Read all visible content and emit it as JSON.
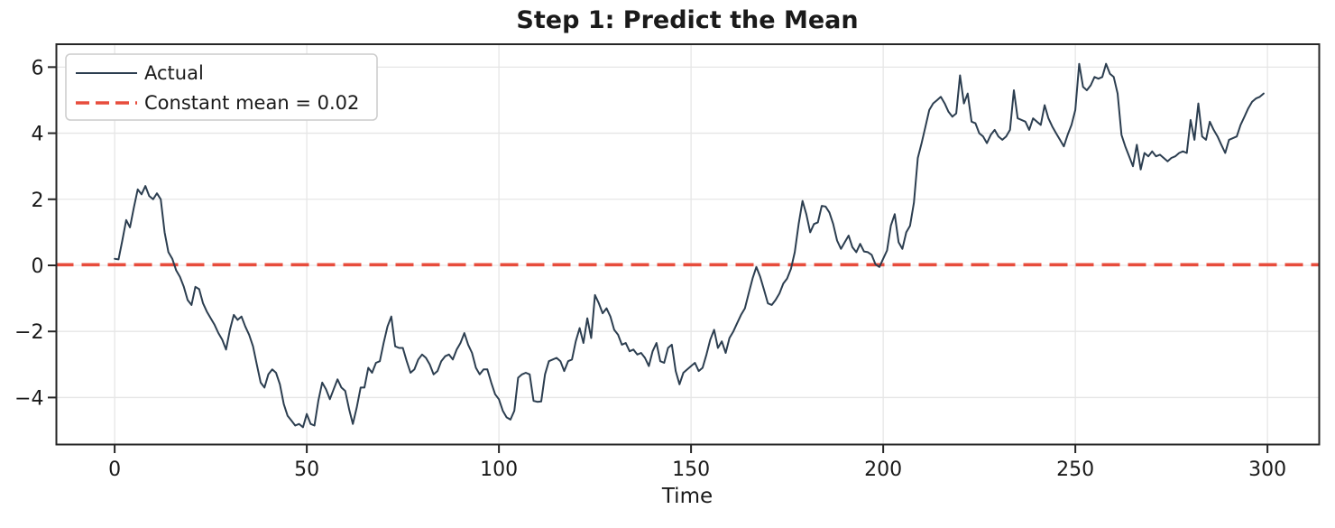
{
  "page": {
    "background": "#ffffff"
  },
  "chart_data": {
    "type": "line",
    "title": "Step 1: Predict the Mean",
    "xlabel": "Time",
    "ylabel": "",
    "x_start": 0,
    "x_step": 1,
    "n_points": 300,
    "xlim": [
      -15.4,
      313.7
    ],
    "ylim": [
      -5.45,
      6.72
    ],
    "xticks": [
      0,
      50,
      100,
      150,
      200,
      250,
      300
    ],
    "xtick_labels": [
      "0",
      "50",
      "100",
      "150",
      "200",
      "250",
      "300"
    ],
    "yticks": [
      6,
      4,
      2,
      0,
      -2,
      -4
    ],
    "ytick_labels": [
      "6",
      "4",
      "2",
      "0",
      "−2",
      "−4"
    ],
    "grid": true,
    "legend_position": "upper left",
    "constant_mean": 0.02,
    "series": [
      {
        "name": "Actual",
        "color": "#2c3e50",
        "style": "solid",
        "line_width": 2,
        "values": [
          0.2,
          0.18,
          0.75,
          1.37,
          1.15,
          1.75,
          2.3,
          2.15,
          2.4,
          2.1,
          2.0,
          2.18,
          2.0,
          1.0,
          0.4,
          0.2,
          -0.15,
          -0.35,
          -0.65,
          -1.05,
          -1.2,
          -0.65,
          -0.72,
          -1.15,
          -1.4,
          -1.6,
          -1.8,
          -2.05,
          -2.25,
          -2.55,
          -1.95,
          -1.5,
          -1.65,
          -1.55,
          -1.85,
          -2.1,
          -2.45,
          -3.0,
          -3.55,
          -3.7,
          -3.3,
          -3.15,
          -3.25,
          -3.6,
          -4.2,
          -4.55,
          -4.7,
          -4.85,
          -4.8,
          -4.9,
          -4.5,
          -4.8,
          -4.85,
          -4.1,
          -3.55,
          -3.75,
          -4.05,
          -3.75,
          -3.45,
          -3.7,
          -3.8,
          -4.35,
          -4.8,
          -4.3,
          -3.7,
          -3.7,
          -3.1,
          -3.25,
          -2.95,
          -2.9,
          -2.35,
          -1.85,
          -1.55,
          -2.45,
          -2.5,
          -2.5,
          -2.9,
          -3.25,
          -3.15,
          -2.85,
          -2.7,
          -2.8,
          -3.0,
          -3.3,
          -3.2,
          -2.9,
          -2.75,
          -2.7,
          -2.85,
          -2.55,
          -2.35,
          -2.05,
          -2.4,
          -2.65,
          -3.1,
          -3.3,
          -3.15,
          -3.15,
          -3.55,
          -3.9,
          -4.05,
          -4.4,
          -4.6,
          -4.67,
          -4.4,
          -3.4,
          -3.3,
          -3.25,
          -3.3,
          -4.1,
          -4.13,
          -4.12,
          -3.3,
          -2.9,
          -2.85,
          -2.8,
          -2.9,
          -3.2,
          -2.9,
          -2.85,
          -2.3,
          -1.9,
          -2.35,
          -1.6,
          -2.2,
          -0.9,
          -1.15,
          -1.45,
          -1.3,
          -1.55,
          -1.95,
          -2.1,
          -2.4,
          -2.35,
          -2.6,
          -2.55,
          -2.7,
          -2.65,
          -2.8,
          -3.05,
          -2.6,
          -2.35,
          -2.9,
          -2.95,
          -2.5,
          -2.4,
          -3.2,
          -3.6,
          -3.25,
          -3.15,
          -3.05,
          -2.95,
          -3.2,
          -3.1,
          -2.7,
          -2.25,
          -1.95,
          -2.5,
          -2.3,
          -2.65,
          -2.2,
          -2.0,
          -1.75,
          -1.5,
          -1.3,
          -0.85,
          -0.4,
          -0.05,
          -0.35,
          -0.75,
          -1.15,
          -1.2,
          -1.05,
          -0.85,
          -0.55,
          -0.4,
          -0.1,
          0.4,
          1.25,
          1.95,
          1.55,
          1.0,
          1.25,
          1.3,
          1.8,
          1.78,
          1.6,
          1.25,
          0.75,
          0.5,
          0.7,
          0.9,
          0.55,
          0.4,
          0.65,
          0.42,
          0.4,
          0.32,
          0.03,
          -0.05,
          0.2,
          0.45,
          1.2,
          1.55,
          0.7,
          0.5,
          1.0,
          1.2,
          1.9,
          3.25,
          3.7,
          4.2,
          4.7,
          4.9,
          5.0,
          5.1,
          4.9,
          4.65,
          4.5,
          4.6,
          5.75,
          4.9,
          5.2,
          4.35,
          4.3,
          4.0,
          3.9,
          3.7,
          3.95,
          4.1,
          3.9,
          3.8,
          3.9,
          4.1,
          5.3,
          4.45,
          4.4,
          4.35,
          4.1,
          4.45,
          4.35,
          4.25,
          4.85,
          4.45,
          4.2,
          4.0,
          3.8,
          3.6,
          3.95,
          4.25,
          4.7,
          6.1,
          5.4,
          5.3,
          5.45,
          5.7,
          5.65,
          5.7,
          6.1,
          5.8,
          5.7,
          5.2,
          3.95,
          3.6,
          3.3,
          3.0,
          3.65,
          2.9,
          3.4,
          3.3,
          3.45,
          3.3,
          3.35,
          3.25,
          3.15,
          3.25,
          3.3,
          3.4,
          3.45,
          3.4,
          4.4,
          3.8,
          4.9,
          3.9,
          3.8,
          4.35,
          4.1,
          3.9,
          3.65,
          3.4,
          3.8,
          3.85,
          3.9,
          4.25,
          4.5,
          4.75,
          4.95,
          5.05,
          5.1,
          5.2
        ]
      },
      {
        "name": "Constant mean = 0.02",
        "color": "#e74c3c",
        "style": "dashed",
        "line_width": 3.6,
        "constant_value": 0.02
      }
    ],
    "colors": {
      "grid": "#e6e6e6",
      "spine": "#262626",
      "text": "#1a1a1a",
      "legend_border": "#cccccc",
      "background": "#ffffff"
    }
  }
}
